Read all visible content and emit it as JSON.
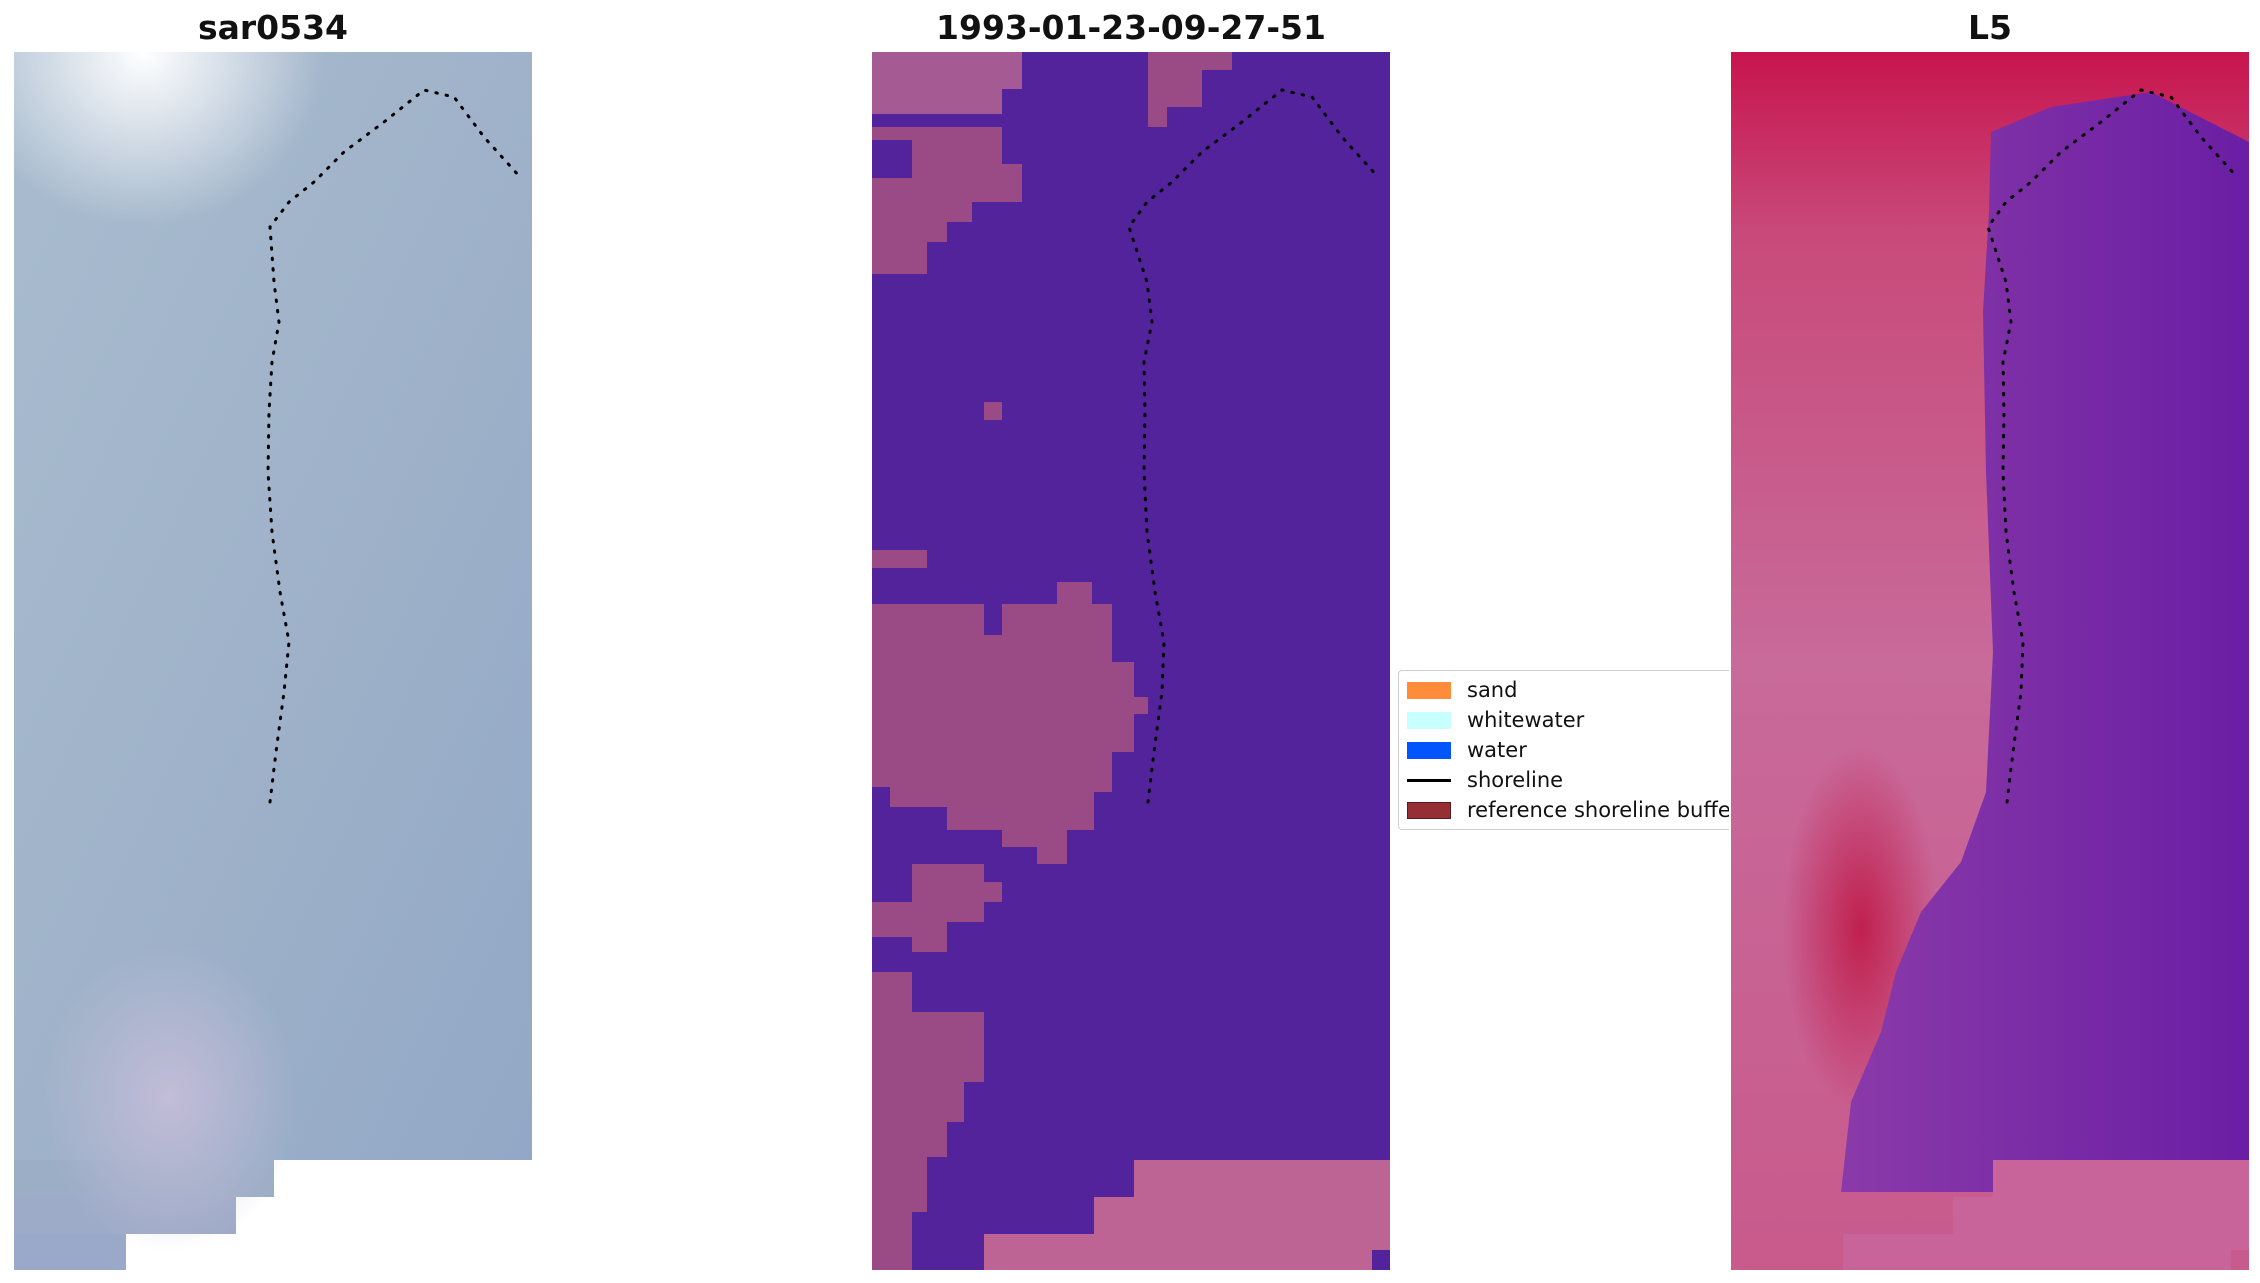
{
  "panels": [
    {
      "title": "sar0534"
    },
    {
      "title": "1993-01-23-09-27-51"
    },
    {
      "title": "L5"
    }
  ],
  "legend": {
    "items": [
      {
        "label": "sand",
        "color": "#ff8c3a"
      },
      {
        "label": "whitewater",
        "color": "#c8ffff"
      },
      {
        "label": "water",
        "color": "#0055ff"
      },
      {
        "label": "shoreline",
        "color": "#000000"
      },
      {
        "label": "reference shoreline buffer",
        "color": "#962e35"
      }
    ]
  },
  "colors": {
    "sar_base": "#9fb0c8",
    "classified_water": "#52239a",
    "classified_land": "#9a4a84",
    "classified_sand_bottom": "#be6495",
    "l5_land": "#cc5a8e",
    "l5_water": "#7a2fa6"
  }
}
